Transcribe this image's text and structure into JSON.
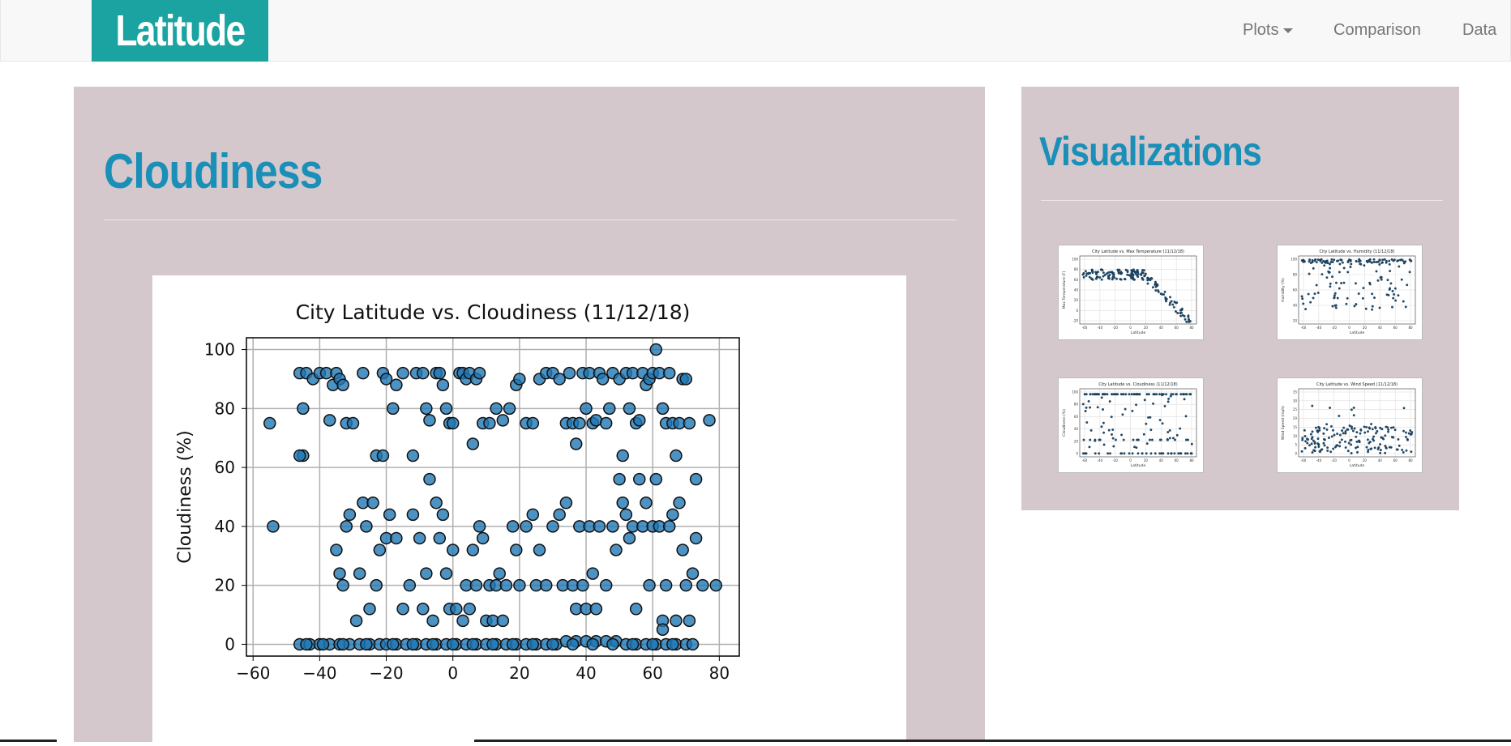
{
  "navbar": {
    "brand": "Latitude",
    "items": [
      {
        "label": "Plots",
        "has_caret": true
      },
      {
        "label": "Comparison",
        "has_caret": false
      },
      {
        "label": "Data",
        "has_caret": false
      }
    ]
  },
  "main": {
    "heading": "Cloudiness",
    "chart_data": {
      "type": "scatter",
      "title": "City Latitude vs. Cloudiness (11/12/18)",
      "xlabel": "",
      "ylabel": "Cloudiness (%)",
      "xlim": [
        -62,
        86
      ],
      "ylim": [
        -4,
        104
      ],
      "xticks": [
        -60,
        -40,
        -20,
        0,
        20,
        40,
        60,
        80
      ],
      "yticks": [
        0,
        20,
        40,
        60,
        80,
        100
      ],
      "grid": true,
      "marker_color": "#1f77b4",
      "points": [
        [
          -55,
          75
        ],
        [
          -54,
          40
        ],
        [
          -46,
          92
        ],
        [
          -45,
          80
        ],
        [
          -45,
          64
        ],
        [
          -46,
          64
        ],
        [
          -44,
          92
        ],
        [
          -42,
          90
        ],
        [
          -40,
          92
        ],
        [
          -38,
          92
        ],
        [
          -37,
          76
        ],
        [
          -36,
          88
        ],
        [
          -35,
          92
        ],
        [
          -34,
          90
        ],
        [
          -33,
          88
        ],
        [
          -32,
          75
        ],
        [
          -30,
          75
        ],
        [
          -27,
          92
        ],
        [
          -23,
          64
        ],
        [
          -21,
          64
        ],
        [
          -21,
          92
        ],
        [
          -20,
          90
        ],
        [
          -18,
          80
        ],
        [
          -17,
          88
        ],
        [
          -15,
          92
        ],
        [
          -12,
          64
        ],
        [
          -11,
          92
        ],
        [
          -9,
          92
        ],
        [
          -8,
          80
        ],
        [
          -7,
          76
        ],
        [
          -5,
          92
        ],
        [
          -4,
          92
        ],
        [
          -3,
          88
        ],
        [
          -2,
          80
        ],
        [
          -1,
          75
        ],
        [
          0,
          75
        ],
        [
          2,
          92
        ],
        [
          3,
          92
        ],
        [
          4,
          90
        ],
        [
          5,
          92
        ],
        [
          6,
          68
        ],
        [
          7,
          90
        ],
        [
          8,
          92
        ],
        [
          9,
          75
        ],
        [
          11,
          75
        ],
        [
          13,
          80
        ],
        [
          15,
          76
        ],
        [
          17,
          80
        ],
        [
          19,
          88
        ],
        [
          20,
          90
        ],
        [
          22,
          75
        ],
        [
          24,
          75
        ],
        [
          26,
          90
        ],
        [
          28,
          92
        ],
        [
          30,
          92
        ],
        [
          32,
          90
        ],
        [
          34,
          75
        ],
        [
          35,
          92
        ],
        [
          36,
          75
        ],
        [
          37,
          68
        ],
        [
          38,
          75
        ],
        [
          39,
          92
        ],
        [
          40,
          80
        ],
        [
          41,
          92
        ],
        [
          42,
          75
        ],
        [
          43,
          76
        ],
        [
          44,
          92
        ],
        [
          45,
          90
        ],
        [
          46,
          75
        ],
        [
          47,
          80
        ],
        [
          48,
          92
        ],
        [
          50,
          90
        ],
        [
          51,
          64
        ],
        [
          52,
          92
        ],
        [
          53,
          80
        ],
        [
          54,
          92
        ],
        [
          55,
          75
        ],
        [
          56,
          76
        ],
        [
          57,
          92
        ],
        [
          58,
          88
        ],
        [
          59,
          90
        ],
        [
          60,
          92
        ],
        [
          61,
          100
        ],
        [
          62,
          92
        ],
        [
          63,
          80
        ],
        [
          64,
          75
        ],
        [
          65,
          92
        ],
        [
          66,
          75
        ],
        [
          67,
          64
        ],
        [
          68,
          75
        ],
        [
          69,
          90
        ],
        [
          70,
          90
        ],
        [
          71,
          75
        ],
        [
          73,
          56
        ],
        [
          77,
          76
        ],
        [
          -35,
          32
        ],
        [
          -34,
          24
        ],
        [
          -33,
          20
        ],
        [
          -32,
          40
        ],
        [
          -31,
          44
        ],
        [
          -29,
          8
        ],
        [
          -28,
          24
        ],
        [
          -27,
          48
        ],
        [
          -26,
          40
        ],
        [
          -25,
          12
        ],
        [
          -24,
          48
        ],
        [
          -23,
          20
        ],
        [
          -22,
          32
        ],
        [
          -20,
          36
        ],
        [
          -19,
          44
        ],
        [
          -17,
          36
        ],
        [
          -15,
          12
        ],
        [
          -13,
          20
        ],
        [
          -12,
          44
        ],
        [
          -10,
          36
        ],
        [
          -9,
          12
        ],
        [
          -8,
          24
        ],
        [
          -7,
          56
        ],
        [
          -6,
          8
        ],
        [
          -5,
          48
        ],
        [
          -4,
          36
        ],
        [
          -3,
          44
        ],
        [
          -2,
          24
        ],
        [
          -1,
          12
        ],
        [
          0,
          32
        ],
        [
          1,
          12
        ],
        [
          3,
          8
        ],
        [
          4,
          20
        ],
        [
          5,
          12
        ],
        [
          6,
          32
        ],
        [
          7,
          20
        ],
        [
          8,
          40
        ],
        [
          9,
          36
        ],
        [
          10,
          8
        ],
        [
          11,
          20
        ],
        [
          12,
          8
        ],
        [
          13,
          20
        ],
        [
          14,
          24
        ],
        [
          15,
          8
        ],
        [
          16,
          20
        ],
        [
          18,
          40
        ],
        [
          19,
          32
        ],
        [
          20,
          20
        ],
        [
          22,
          40
        ],
        [
          24,
          44
        ],
        [
          25,
          20
        ],
        [
          26,
          32
        ],
        [
          28,
          20
        ],
        [
          30,
          40
        ],
        [
          32,
          44
        ],
        [
          33,
          20
        ],
        [
          34,
          48
        ],
        [
          36,
          20
        ],
        [
          37,
          12
        ],
        [
          38,
          40
        ],
        [
          39,
          20
        ],
        [
          40,
          12
        ],
        [
          41,
          40
        ],
        [
          42,
          24
        ],
        [
          43,
          12
        ],
        [
          44,
          40
        ],
        [
          46,
          20
        ],
        [
          48,
          40
        ],
        [
          49,
          32
        ],
        [
          50,
          56
        ],
        [
          51,
          48
        ],
        [
          52,
          44
        ],
        [
          53,
          36
        ],
        [
          54,
          40
        ],
        [
          55,
          12
        ],
        [
          56,
          56
        ],
        [
          57,
          40
        ],
        [
          58,
          48
        ],
        [
          59,
          20
        ],
        [
          60,
          40
        ],
        [
          61,
          56
        ],
        [
          62,
          40
        ],
        [
          63,
          8
        ],
        [
          64,
          20
        ],
        [
          65,
          40
        ],
        [
          66,
          44
        ],
        [
          67,
          8
        ],
        [
          68,
          48
        ],
        [
          69,
          32
        ],
        [
          70,
          20
        ],
        [
          71,
          8
        ],
        [
          72,
          24
        ],
        [
          73,
          36
        ],
        [
          75,
          20
        ],
        [
          79,
          20
        ],
        [
          -46,
          0
        ],
        [
          -43,
          0
        ],
        [
          -40,
          0
        ],
        [
          -37,
          0
        ],
        [
          -34,
          0
        ],
        [
          -31,
          0
        ],
        [
          -28,
          0
        ],
        [
          -25,
          0
        ],
        [
          -22,
          0
        ],
        [
          -20,
          0
        ],
        [
          -17,
          0
        ],
        [
          -14,
          0
        ],
        [
          -11,
          0
        ],
        [
          -8,
          0
        ],
        [
          -5,
          0
        ],
        [
          -2,
          0
        ],
        [
          1,
          0
        ],
        [
          4,
          0
        ],
        [
          7,
          0
        ],
        [
          10,
          0
        ],
        [
          13,
          0
        ],
        [
          16,
          0
        ],
        [
          19,
          0
        ],
        [
          22,
          0
        ],
        [
          25,
          0
        ],
        [
          28,
          0
        ],
        [
          31,
          0
        ],
        [
          34,
          1
        ],
        [
          37,
          1
        ],
        [
          40,
          1
        ],
        [
          43,
          1
        ],
        [
          46,
          1
        ],
        [
          49,
          1
        ],
        [
          52,
          0
        ],
        [
          55,
          0
        ],
        [
          58,
          0
        ],
        [
          61,
          0
        ],
        [
          64,
          0
        ],
        [
          67,
          0
        ],
        [
          70,
          0
        ],
        [
          72,
          0
        ],
        [
          -44,
          0
        ],
        [
          -39,
          0
        ],
        [
          -33,
          0
        ],
        [
          -26,
          0
        ],
        [
          -18,
          0
        ],
        [
          -12,
          0
        ],
        [
          -6,
          0
        ],
        [
          0,
          0
        ],
        [
          6,
          0
        ],
        [
          12,
          0
        ],
        [
          18,
          0
        ],
        [
          24,
          0
        ],
        [
          30,
          0
        ],
        [
          36,
          0
        ],
        [
          42,
          0
        ],
        [
          48,
          0
        ],
        [
          54,
          0
        ],
        [
          60,
          0
        ],
        [
          66,
          0
        ],
        [
          63,
          5
        ]
      ]
    }
  },
  "side": {
    "heading": "Visualizations",
    "thumbnails": [
      {
        "title": "City Latitude vs. Max Temperature (11/12/18)",
        "ylabel": "Max Temperature (F)",
        "xlabel": "Latitude",
        "yticks": [
          "100",
          "80",
          "60",
          "40",
          "20",
          "0",
          "-20"
        ],
        "xticks": [
          "-60",
          "-40",
          "-20",
          "0",
          "20",
          "40",
          "60",
          "80"
        ],
        "kind": "temp"
      },
      {
        "title": "City Latitude vs. Humidity (11/12/18)",
        "ylabel": "Humidity (%)",
        "xlabel": "Latitude",
        "yticks": [
          "100",
          "80",
          "60",
          "40",
          "20"
        ],
        "xticks": [
          "-60",
          "-40",
          "-20",
          "0",
          "20",
          "40",
          "60",
          "80"
        ],
        "kind": "humidity"
      },
      {
        "title": "City Latitude vs. Cloudiness (11/12/18)",
        "ylabel": "Cloudiness (%)",
        "xlabel": "Latitude",
        "yticks": [
          "100",
          "80",
          "60",
          "40",
          "20",
          "0"
        ],
        "xticks": [
          "-60",
          "-40",
          "-20",
          "0",
          "20",
          "40",
          "60",
          "80"
        ],
        "kind": "cloud"
      },
      {
        "title": "City Latitude vs. Wind Speed (11/12/18)",
        "ylabel": "Wind Speed (mph)",
        "xlabel": "Latitude",
        "yticks": [
          "35",
          "30",
          "25",
          "20",
          "15",
          "10",
          "5",
          "0"
        ],
        "xticks": [
          "-60",
          "-40",
          "-20",
          "0",
          "20",
          "40",
          "60",
          "80"
        ],
        "kind": "wind"
      }
    ]
  },
  "colors": {
    "brand_bg": "#1aa3a0",
    "heading": "#1a8fb8",
    "panel_bg": "#d4c8cc",
    "marker": "#1f77b4"
  }
}
